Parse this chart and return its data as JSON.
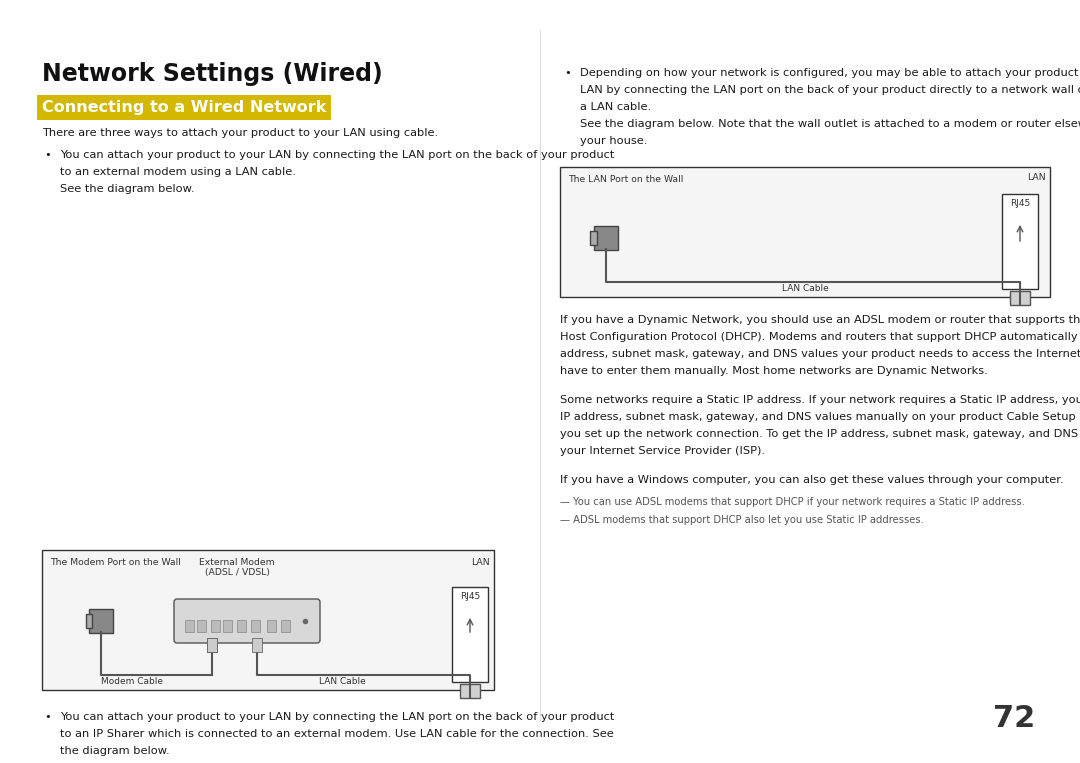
{
  "bg_color": "#ffffff",
  "title": "Network Settings (Wired)",
  "subtitle": "Connecting to a Wired Network",
  "subtitle_bg": "#d4b800",
  "subtitle_color": "#ffffff",
  "body_color": "#1a1a1a",
  "page_number": "72",
  "para_intro": "There are three ways to attach your product to your LAN using cable.",
  "bullet1_text": "You can attach your product to your LAN by connecting the LAN port on the back of your product\nto an external modem using a LAN cable.\nSee the diagram below.",
  "bullet2_text": "You can attach your product to your LAN by connecting the LAN port on the back of your product\nto an IP Sharer which is connected to an external modem. Use LAN cable for the connection. See\nthe diagram below.",
  "right_bullet1_text": "Depending on how your network is configured, you may be able to attach your product to your\nLAN by connecting the LAN port on the back of your product directly to a network wall outlet using\na LAN cable.\nSee the diagram below. Note that the wall outlet is attached to a modem or router elsewhere in\nyour house.",
  "right_para1": "If you have a Dynamic Network, you should use an ADSL modem or router that supports the Dynamic\nHost Configuration Protocol (DHCP). Modems and routers that support DHCP automatically provide the IP\naddress, subnet mask, gateway, and DNS values your product needs to access the Internet so you do not\nhave to enter them manually. Most home networks are Dynamic Networks.",
  "right_para2": "Some networks require a Static IP address. If your network requires a Static IP address, you must enter the\nIP address, subnet mask, gateway, and DNS values manually on your product Cable Setup Screen when\nyou set up the network connection. To get the IP address, subnet mask, gateway, and DNS values, contact\nyour Internet Service Provider (ISP).",
  "right_para3": "If you have a Windows computer, you can also get these values through your computer.",
  "right_note1": "— You can use ADSL modems that support DHCP if your network requires a Static IP address.",
  "right_note2": "— ADSL modems that support DHCP also let you use Static IP addresses.",
  "diag_border": "#333333",
  "diag_bg": "#f5f5f5",
  "device_color": "#e0e0e0",
  "device_dark": "#c8c8c8"
}
